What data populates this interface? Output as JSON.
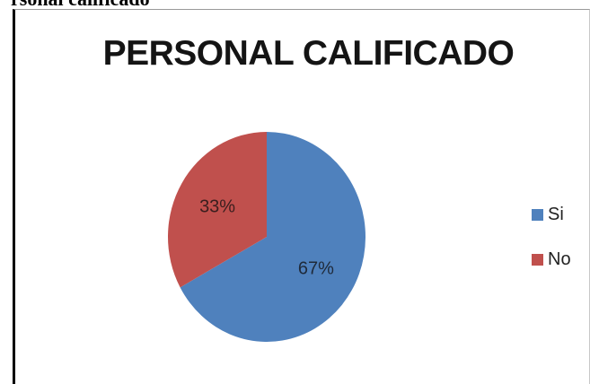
{
  "caption": "rsonal calificado",
  "colors": {
    "si": "#4f81bd",
    "no": "#c0504d"
  },
  "chart_data": {
    "type": "pie",
    "title": "PERSONAL CALIFICADO",
    "categories": [
      "Si",
      "No"
    ],
    "values": [
      67,
      33
    ],
    "data_labels": [
      "67%",
      "33%"
    ],
    "legend": {
      "position": "right",
      "entries": [
        "Si",
        "No"
      ]
    }
  }
}
